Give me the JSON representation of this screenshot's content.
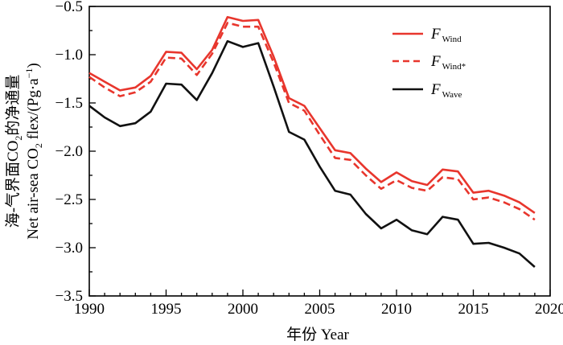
{
  "chart_data": {
    "type": "line",
    "title": "",
    "xlabel": "年份 Year",
    "ylabel_cn_prefix": "海-气界面CO",
    "ylabel_cn_sub": "2",
    "ylabel_cn_suffix": "的净通量",
    "ylabel_en_prefix": "Net air-sea CO",
    "ylabel_en_sub": "2",
    "ylabel_en_suffix": " flex/(Pg·a",
    "ylabel_en_sup": "−1",
    "ylabel_en_end": ")",
    "xlim": [
      1990,
      2020
    ],
    "ylim": [
      -3.5,
      -0.5
    ],
    "xticks": [
      1990,
      1995,
      2000,
      2005,
      2010,
      2015,
      2020
    ],
    "xtick_labels": [
      "1990",
      "1995",
      "2000",
      "2005",
      "2010",
      "2015",
      "2020"
    ],
    "yticks": [
      -3.5,
      -3.0,
      -2.5,
      -2.0,
      -1.5,
      -1.0,
      -0.5
    ],
    "ytick_labels": [
      "−3.5",
      "−3.0",
      "−2.5",
      "−2.0",
      "−1.5",
      "−1.0",
      "−0.5"
    ],
    "legend_position": "top-right",
    "x": [
      1990,
      1991,
      1992,
      1993,
      1994,
      1995,
      1996,
      1997,
      1998,
      1999,
      2000,
      2001,
      2002,
      2003,
      2004,
      2005,
      2006,
      2007,
      2008,
      2009,
      2010,
      2011,
      2012,
      2013,
      2014,
      2015,
      2016,
      2017,
      2018,
      2019
    ],
    "series": [
      {
        "name": "Wind",
        "label_main": "F",
        "label_sub": "Wind",
        "color": "#e8362d",
        "dash": "solid",
        "values": [
          -1.19,
          -1.28,
          -1.37,
          -1.34,
          -1.22,
          -0.97,
          -0.98,
          -1.15,
          -0.95,
          -0.61,
          -0.65,
          -0.64,
          -1.02,
          -1.45,
          -1.53,
          -1.76,
          -1.99,
          -2.02,
          -2.18,
          -2.32,
          -2.22,
          -2.31,
          -2.35,
          -2.19,
          -2.21,
          -2.43,
          -2.41,
          -2.46,
          -2.53,
          -2.64
        ]
      },
      {
        "name": "Wind*",
        "label_main": "F",
        "label_sub": "Wind*",
        "color": "#e8362d",
        "dash": "dashed",
        "values": [
          -1.23,
          -1.34,
          -1.43,
          -1.39,
          -1.28,
          -1.03,
          -1.04,
          -1.21,
          -0.99,
          -0.67,
          -0.71,
          -0.71,
          -1.08,
          -1.5,
          -1.58,
          -1.83,
          -2.07,
          -2.09,
          -2.25,
          -2.39,
          -2.3,
          -2.38,
          -2.41,
          -2.27,
          -2.29,
          -2.5,
          -2.48,
          -2.53,
          -2.6,
          -2.71
        ]
      },
      {
        "name": "Wave",
        "label_main": "F",
        "label_sub": "Wave",
        "color": "#111111",
        "dash": "solid",
        "values": [
          -1.53,
          -1.65,
          -1.74,
          -1.71,
          -1.59,
          -1.3,
          -1.31,
          -1.47,
          -1.19,
          -0.86,
          -0.92,
          -0.88,
          -1.33,
          -1.8,
          -1.88,
          -2.16,
          -2.41,
          -2.45,
          -2.65,
          -2.8,
          -2.71,
          -2.82,
          -2.86,
          -2.68,
          -2.71,
          -2.96,
          -2.95,
          -3.0,
          -3.06,
          -3.2
        ]
      }
    ]
  }
}
